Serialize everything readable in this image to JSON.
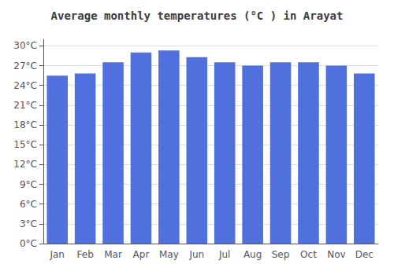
{
  "chart_data": {
    "type": "bar",
    "title": "Average monthly temperatures (°C ) in Arayat",
    "categories": [
      "Jan",
      "Feb",
      "Mar",
      "Apr",
      "May",
      "Jun",
      "Jul",
      "Aug",
      "Sep",
      "Oct",
      "Nov",
      "Dec"
    ],
    "values": [
      25.5,
      25.8,
      27.5,
      29.0,
      29.3,
      28.3,
      27.5,
      27.0,
      27.5,
      27.5,
      27.0,
      25.8
    ],
    "ylim": [
      0,
      31
    ],
    "yticks": [
      {
        "value": 0,
        "label": "0°C"
      },
      {
        "value": 3,
        "label": "3°C"
      },
      {
        "value": 6,
        "label": "6°C"
      },
      {
        "value": 9,
        "label": "9°C"
      },
      {
        "value": 12,
        "label": "12°C"
      },
      {
        "value": 15,
        "label": "15°C"
      },
      {
        "value": 18,
        "label": "18°C"
      },
      {
        "value": 21,
        "label": "21°C"
      },
      {
        "value": 24,
        "label": "24°C"
      },
      {
        "value": 27,
        "label": "27°C"
      },
      {
        "value": 30,
        "label": "30°C"
      }
    ],
    "grid": true
  }
}
